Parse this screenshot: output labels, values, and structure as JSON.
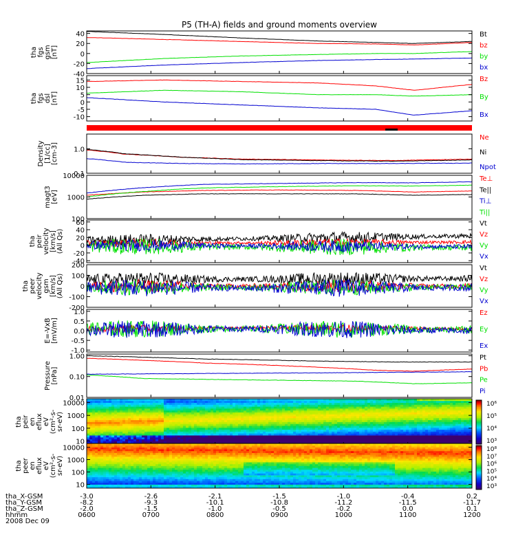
{
  "title": "P5 (TH-A) fields and ground moments overview",
  "colors": {
    "black": "#000000",
    "red": "#ff0000",
    "green": "#00e000",
    "blue": "#0000d0"
  },
  "chart_data": [
    {
      "type": "line",
      "id": "fgs_gsm",
      "ylabel": [
        "tha",
        "fgs",
        "gsm",
        "[nT]"
      ],
      "ylim": [
        -40,
        45
      ],
      "yticks": [
        "40",
        "20",
        "0",
        "-20",
        "-40"
      ],
      "ytick_values": [
        40,
        20,
        0,
        -20,
        -40
      ],
      "series": [
        {
          "name": "Bt",
          "color": "black",
          "x": [
            0,
            0.2,
            0.4,
            0.6,
            0.75,
            0.85,
            1
          ],
          "values": [
            44,
            38,
            31,
            25,
            22,
            20,
            24
          ]
        },
        {
          "name": "bz",
          "color": "red",
          "x": [
            0,
            0.2,
            0.4,
            0.6,
            0.75,
            0.85,
            1
          ],
          "values": [
            32,
            28,
            24,
            20,
            19,
            17,
            22
          ]
        },
        {
          "name": "by",
          "color": "green",
          "x": [
            0,
            0.2,
            0.4,
            0.6,
            0.75,
            0.85,
            1
          ],
          "values": [
            -18,
            -10,
            -5,
            -2,
            0,
            0,
            4
          ]
        },
        {
          "name": "bx",
          "color": "blue",
          "x": [
            0,
            0.2,
            0.4,
            0.6,
            0.75,
            0.85,
            1
          ],
          "values": [
            -30,
            -23,
            -18,
            -14,
            -12,
            -11,
            -9
          ]
        }
      ]
    },
    {
      "type": "line",
      "id": "fgs_dsl",
      "ylabel": [
        "tha",
        "fgs",
        "dsl",
        "[nT]"
      ],
      "ylim": [
        -13,
        18
      ],
      "yticks": [
        "15",
        "10",
        "5",
        "0",
        "-5",
        "-10"
      ],
      "ytick_values": [
        15,
        10,
        5,
        0,
        -5,
        -10
      ],
      "series": [
        {
          "name": "Bz",
          "color": "red",
          "x": [
            0,
            0.2,
            0.4,
            0.6,
            0.75,
            0.85,
            1
          ],
          "values": [
            14,
            15,
            14,
            13,
            11,
            8,
            12
          ]
        },
        {
          "name": "By",
          "color": "green",
          "x": [
            0,
            0.2,
            0.4,
            0.6,
            0.75,
            0.85,
            1
          ],
          "values": [
            6,
            8,
            7,
            5,
            5,
            4,
            5
          ]
        },
        {
          "name": "Bx",
          "color": "blue",
          "x": [
            0,
            0.2,
            0.4,
            0.6,
            0.75,
            0.85,
            1
          ],
          "values": [
            3,
            0,
            -2,
            -4,
            -5,
            -9,
            -6
          ]
        }
      ]
    },
    {
      "type": "line",
      "id": "density",
      "ylabel": [
        "Density",
        "[1/cc]",
        "[cm-3]"
      ],
      "log": true,
      "ylim": [
        0.1,
        4
      ],
      "yticks": [
        "1.0",
        "0.1"
      ],
      "ytick_values": [
        1.0,
        0.1
      ],
      "series": [
        {
          "name": "Ne",
          "color": "red",
          "x": [
            0,
            0.1,
            0.25,
            0.4,
            0.6,
            0.8,
            1
          ],
          "values": [
            0.9,
            0.6,
            0.45,
            0.38,
            0.35,
            0.33,
            0.38
          ]
        },
        {
          "name": "Ni",
          "color": "black",
          "x": [
            0,
            0.1,
            0.25,
            0.4,
            0.6,
            0.8,
            1
          ],
          "values": [
            0.95,
            0.62,
            0.45,
            0.36,
            0.33,
            0.31,
            0.35
          ]
        },
        {
          "name": "Npot",
          "color": "blue",
          "x": [
            0,
            0.1,
            0.25,
            0.4,
            0.6,
            0.8,
            1
          ],
          "values": [
            0.4,
            0.28,
            0.25,
            0.24,
            0.25,
            0.25,
            0.26
          ]
        }
      ]
    },
    {
      "type": "line",
      "id": "temperature",
      "ylabel": [
        "magt3",
        "[eV]"
      ],
      "log": true,
      "ylim": [
        100,
        10000
      ],
      "yticks": [
        "10000",
        "1000",
        "100"
      ],
      "ytick_values": [
        10000,
        1000,
        100
      ],
      "series": [
        {
          "name": "Te⊥",
          "color": "red",
          "x": [
            0,
            0.15,
            0.3,
            0.5,
            0.7,
            0.85,
            1
          ],
          "values": [
            1200,
            1700,
            2000,
            2100,
            2000,
            1700,
            1900
          ]
        },
        {
          "name": "Te||",
          "color": "black",
          "x": [
            0,
            0.15,
            0.3,
            0.5,
            0.7,
            0.85,
            1
          ],
          "values": [
            800,
            1200,
            1400,
            1400,
            1400,
            1200,
            1300
          ]
        },
        {
          "name": "Ti⊥",
          "color": "blue",
          "x": [
            0,
            0.15,
            0.3,
            0.5,
            0.7,
            0.85,
            1
          ],
          "values": [
            1500,
            2700,
            3800,
            4200,
            4600,
            4500,
            5000
          ]
        },
        {
          "name": "Ti||",
          "color": "green",
          "x": [
            0,
            0.15,
            0.3,
            0.5,
            0.7,
            0.85,
            1
          ],
          "values": [
            1000,
            1800,
            2600,
            3000,
            3300,
            3200,
            3500
          ]
        }
      ]
    },
    {
      "type": "line",
      "id": "peir_vel",
      "ylabel": [
        "tha",
        "peir",
        "velocity",
        "[km/s]",
        "(All Qs)"
      ],
      "ylim": [
        -45,
        65
      ],
      "yticks": [
        "60",
        "40",
        "20",
        "0",
        "-20",
        "-40"
      ],
      "ytick_values": [
        60,
        40,
        20,
        0,
        -20,
        -40
      ],
      "series": [
        {
          "name": "Vt",
          "color": "black",
          "x": [
            0,
            0.5,
            1
          ],
          "values": [
            12,
            18,
            24
          ],
          "noise": 10
        },
        {
          "name": "Vz",
          "color": "red",
          "x": [
            0,
            0.5,
            1
          ],
          "values": [
            5,
            6,
            8
          ],
          "noise": 7
        },
        {
          "name": "Vy",
          "color": "green",
          "x": [
            0,
            0.5,
            1
          ],
          "values": [
            -3,
            -5,
            -6
          ],
          "noise": 14
        },
        {
          "name": "Vx",
          "color": "blue",
          "x": [
            0,
            0.5,
            1
          ],
          "values": [
            0,
            -2,
            -4
          ],
          "noise": 10
        }
      ]
    },
    {
      "type": "line",
      "id": "peer_vel",
      "ylabel": [
        "tha",
        "peer",
        "velocity",
        "gsm",
        "[km/s]",
        "(All Qs)"
      ],
      "ylim": [
        -200,
        200
      ],
      "yticks": [
        "200",
        "100",
        "0",
        "-100",
        "-200"
      ],
      "ytick_values": [
        200,
        100,
        0,
        -100,
        -200
      ],
      "series": [
        {
          "name": "Vt",
          "color": "black",
          "x": [
            0,
            0.5,
            1
          ],
          "values": [
            60,
            65,
            70
          ],
          "noise": 45
        },
        {
          "name": "Vz",
          "color": "red",
          "x": [
            0,
            0.5,
            1
          ],
          "values": [
            0,
            0,
            0
          ],
          "noise": 40
        },
        {
          "name": "Vy",
          "color": "green",
          "x": [
            0,
            0.5,
            1
          ],
          "values": [
            -10,
            -15,
            -10
          ],
          "noise": 50
        },
        {
          "name": "Vx",
          "color": "blue",
          "x": [
            0,
            0.5,
            1
          ],
          "values": [
            -15,
            -20,
            -15
          ],
          "noise": 55
        }
      ]
    },
    {
      "type": "line",
      "id": "exb",
      "ylabel": [
        "E=-VxB",
        "[mV/m]"
      ],
      "ylim": [
        -1.1,
        1.1
      ],
      "yticks": [
        "1.0",
        "0.5",
        "0.0",
        "-0.5",
        "-1.0"
      ],
      "ytick_values": [
        1,
        0.5,
        0,
        -0.5,
        -1
      ],
      "series": [
        {
          "name": "Ez",
          "color": "red",
          "x": [
            0,
            0.5,
            1
          ],
          "values": [
            0.1,
            0.15,
            0.1
          ],
          "noise": 0.12
        },
        {
          "name": "Ey",
          "color": "green",
          "x": [
            0,
            0.5,
            1
          ],
          "values": [
            0.1,
            0.1,
            0.05
          ],
          "noise": 0.3
        },
        {
          "name": "Ex",
          "color": "blue",
          "x": [
            0,
            0.5,
            1
          ],
          "values": [
            0.05,
            0.1,
            0.0
          ],
          "noise": 0.3
        }
      ]
    },
    {
      "type": "line",
      "id": "pressure",
      "ylabel": [
        "Pressure",
        "[nPa]"
      ],
      "log": true,
      "ylim": [
        0.01,
        1.2
      ],
      "yticks": [
        "1.00",
        "0.10",
        "0.01"
      ],
      "ytick_values": [
        1.0,
        0.1,
        0.01
      ],
      "series": [
        {
          "name": "Pt",
          "color": "black",
          "x": [
            0,
            0.3,
            0.6,
            0.8,
            1
          ],
          "values": [
            1.0,
            0.7,
            0.55,
            0.5,
            0.5
          ]
        },
        {
          "name": "Pb",
          "color": "red",
          "x": [
            0,
            0.3,
            0.6,
            0.75,
            0.85,
            1
          ],
          "values": [
            0.75,
            0.45,
            0.28,
            0.2,
            0.18,
            0.23
          ]
        },
        {
          "name": "Pe",
          "color": "green",
          "x": [
            0,
            0.15,
            0.4,
            0.7,
            0.85,
            1
          ],
          "values": [
            0.12,
            0.08,
            0.07,
            0.06,
            0.045,
            0.05
          ]
        },
        {
          "name": "Pi",
          "color": "blue",
          "x": [
            0,
            0.3,
            0.6,
            0.8,
            1
          ],
          "values": [
            0.13,
            0.14,
            0.15,
            0.16,
            0.17
          ]
        }
      ]
    },
    {
      "type": "heatmap",
      "id": "peir_en",
      "ylabel": [
        "tha",
        "peir",
        "en",
        "eflux",
        "eV",
        "(cm²-s-",
        "sr-eV)"
      ],
      "ylim": [
        5,
        20000
      ],
      "yticks": [
        "10000",
        "1000",
        "100",
        "10"
      ],
      "ytick_values": [
        10000,
        1000,
        100,
        10
      ]
    },
    {
      "type": "heatmap",
      "id": "peer_en",
      "ylabel": [
        "tha",
        "peer",
        "en",
        "eflux",
        "eV",
        "(cm²-s-",
        "sr-eV)"
      ],
      "ylim": [
        5,
        20000
      ],
      "yticks": [
        "10000",
        "1000",
        "100",
        "10"
      ],
      "ytick_values": [
        10000,
        1000,
        100,
        10
      ]
    }
  ],
  "colorbars": [
    {
      "id": "cb1",
      "labels": [
        "10⁶",
        "10⁵",
        "10⁴",
        "10³"
      ],
      "log_min": 3,
      "log_max": 6.3
    },
    {
      "id": "cb2",
      "labels": [
        "10⁸",
        "10⁷",
        "10⁶",
        "10⁵",
        "10⁴",
        "10³"
      ],
      "log_min": 3,
      "log_max": 8.2
    }
  ],
  "xaxis": {
    "tick_values": [
      0,
      1,
      2,
      3,
      4,
      5,
      6
    ],
    "rows": [
      {
        "label": "tha_X-GSM",
        "values": [
          "-3.0",
          "-2.6",
          "-2.1",
          "-1.5",
          "-1.0",
          "-0.4",
          "0.2"
        ]
      },
      {
        "label": "tha_Y-GSM",
        "values": [
          "-8.2",
          "-9.3",
          "-10.1",
          "-10.8",
          "-11.2",
          "-11.5",
          "-11.7"
        ]
      },
      {
        "label": "tha_Z-GSM",
        "values": [
          "-2.0",
          "-1.5",
          "-1.0",
          "-0.5",
          "-0.2",
          "0.0",
          "0.1"
        ]
      },
      {
        "label": "hhmm",
        "values": [
          "0600",
          "0700",
          "0800",
          "0900",
          "1000",
          "1100",
          "1200"
        ]
      }
    ],
    "date": "2008 Dec 09"
  }
}
